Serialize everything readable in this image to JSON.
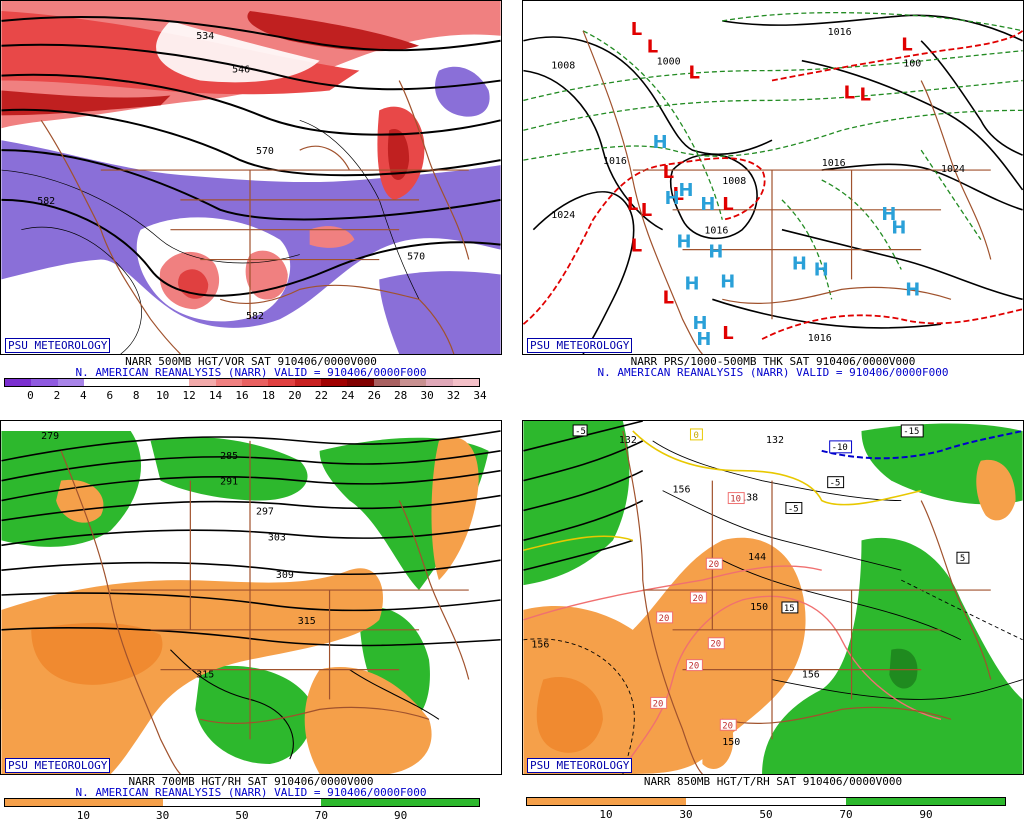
{
  "logo": "PSU METEOROLOGY",
  "colors": {
    "coast": "#a0522d",
    "vort_pos": [
      "#f08080",
      "#e8484a",
      "#c02020",
      "#8b0000"
    ],
    "vort_neg": "#8a6fd8",
    "rh_dry": "#f5a04a",
    "rh_moist": "#2db82d",
    "dashed_green": "#228b22",
    "dashed_red": "#e00000",
    "h_color": "#2aa0d8",
    "l_color": "#e00000"
  },
  "panels": [
    {
      "id": "vort",
      "title_line1": "NARR 500MB HGT/VOR SAT 910406/0000V000",
      "title_line2": "N. AMERICAN REANALYSIS (NARR) VALID = 910406/0000F000",
      "legend_colors": [
        "#7b2fd0",
        "#8f5ae0",
        "#a884e8",
        "#ffffff",
        "#ffffff",
        "#ffffff",
        "#ffffff",
        "#f2aaaa",
        "#f08080",
        "#e86060",
        "#e04040",
        "#c82020",
        "#a00000",
        "#800000",
        "#a86060",
        "#c89090",
        "#e0a8b8",
        "#f4c0c8"
      ],
      "legend_ticks": [
        "0",
        "2",
        "4",
        "6",
        "8",
        "10",
        "12",
        "14",
        "16",
        "18",
        "20",
        "22",
        "24",
        "26",
        "28",
        "30",
        "32",
        "34"
      ],
      "contour_labels": [
        "534",
        "546",
        "570",
        "582",
        "582",
        "570"
      ]
    },
    {
      "id": "mslp",
      "title_line1": "NARR PRS/1000-500MB THK SAT 910406/0000V000",
      "title_line2": "N. AMERICAN REANALYSIS (NARR) VALID = 910406/0000F000",
      "isobar_labels": [
        "1008",
        "1000",
        "1016",
        "1016",
        "1008",
        "1016",
        "1024",
        "1024",
        "1016",
        "100",
        "1016"
      ],
      "highs": 16,
      "lows": 12
    },
    {
      "id": "rh700",
      "title_line1": "NARR 700MB HGT/RH SAT 910406/0000V000",
      "title_line2": "N. AMERICAN REANALYSIS (NARR) VALID = 910406/0000F000",
      "legend_colors": [
        "#f5a04a",
        "#f5a04a",
        "#ffffff",
        "#ffffff",
        "#2db82d",
        "#2db82d"
      ],
      "legend_ticks": [
        "10",
        "30",
        "50",
        "70",
        "90"
      ],
      "contour_labels": [
        "279",
        "285",
        "291",
        "297",
        "303",
        "309",
        "315",
        "315"
      ]
    },
    {
      "id": "rh850",
      "title_line1": "NARR 850MB HGT/T/RH SAT 910406/0000V000",
      "legend_colors": [
        "#f5a04a",
        "#f5a04a",
        "#ffffff",
        "#ffffff",
        "#2db82d",
        "#2db82d"
      ],
      "legend_ticks": [
        "10",
        "30",
        "50",
        "70",
        "90"
      ],
      "contour_labels": [
        "132",
        "132",
        "138",
        "144",
        "150",
        "156",
        "156",
        "150",
        "156"
      ],
      "temp_labels": [
        "-5",
        "0",
        "-10",
        "-15",
        "-5",
        "10",
        "-5",
        "5",
        "20",
        "20",
        "20",
        "15",
        "20",
        "20",
        "20",
        "20"
      ]
    }
  ]
}
